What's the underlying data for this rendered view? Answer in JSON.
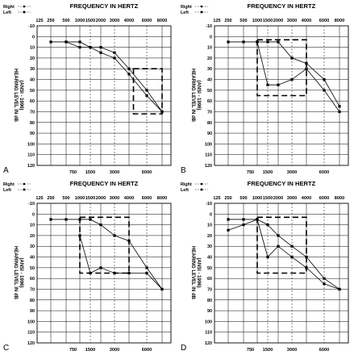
{
  "chart_data": [
    {
      "panel": "A",
      "type": "line",
      "title": "FREQUENCY IN HERTZ",
      "ylabel": "HEARING LEVEL IN dB",
      "ylabel2": "(ANSI - 1996)",
      "top_x_ticks": [
        "125",
        "250",
        "500",
        "1000",
        "1500",
        "2000",
        "3000",
        "4000",
        "6000",
        "8000"
      ],
      "bottom_x_ticks": [
        "750",
        "1500",
        "3000",
        "6000"
      ],
      "y_ticks": [
        "-10",
        "0",
        "10",
        "20",
        "30",
        "40",
        "50",
        "60",
        "70",
        "80",
        "90",
        "100",
        "110",
        "120"
      ],
      "ylim": [
        -10,
        120
      ],
      "y_inverted": true,
      "legend": [
        {
          "label": "Right",
          "marker": "circle"
        },
        {
          "label": "Left",
          "marker": "square"
        }
      ],
      "series": [
        {
          "x": [
            250,
            500,
            1000,
            1500,
            2000,
            3000,
            4000,
            6000,
            8000
          ],
          "values": [
            5,
            5,
            5,
            10,
            10,
            15,
            30,
            50,
            70
          ]
        },
        {
          "x": [
            500,
            1000,
            1500,
            2000,
            3000,
            4000,
            6000,
            8000
          ],
          "values": [
            5,
            10,
            10,
            15,
            20,
            35,
            55,
            70
          ]
        }
      ],
      "box": {
        "x": [
          4500,
          8000
        ],
        "y": [
          30,
          72
        ]
      }
    },
    {
      "panel": "B",
      "type": "line",
      "title": "FREQUENCY IN HERTZ",
      "ylabel": "HEARING LEVEL IN dB",
      "ylabel2": "(ANSI - 1996)",
      "top_x_ticks": [
        "125",
        "250",
        "500",
        "1000",
        "1500",
        "2000",
        "3000",
        "4000",
        "6000",
        "8000"
      ],
      "bottom_x_ticks": [
        "750",
        "1500",
        "3000",
        "6000"
      ],
      "y_ticks": [
        "-10",
        "0",
        "10",
        "20",
        "30",
        "40",
        "50",
        "60",
        "70",
        "80",
        "90",
        "100",
        "110",
        "120"
      ],
      "ylim": [
        -10,
        120
      ],
      "y_inverted": true,
      "legend": [
        {
          "label": "Right",
          "marker": "circle"
        },
        {
          "label": "Left",
          "marker": "square"
        }
      ],
      "series": [
        {
          "x": [
            250,
            500,
            1000,
            1500,
            2000,
            3000,
            4000,
            6000,
            8000
          ],
          "values": [
            5,
            5,
            5,
            5,
            5,
            20,
            25,
            40,
            65
          ]
        },
        {
          "x": [
            1000,
            1500,
            2000,
            3000,
            4000,
            6000,
            8000
          ],
          "values": [
            5,
            45,
            45,
            40,
            30,
            50,
            70
          ]
        }
      ],
      "box": {
        "x": [
          1000,
          4000
        ],
        "y": [
          3,
          55
        ]
      }
    },
    {
      "panel": "C",
      "type": "line",
      "title": "FREQUENCY IN HERTZ",
      "ylabel": "HEARING LEVEL IN dB",
      "ylabel2": "(ANSI - 1996)",
      "top_x_ticks": [
        "125",
        "250",
        "500",
        "1000",
        "1500",
        "2000",
        "3000",
        "4000",
        "6000",
        "8000"
      ],
      "bottom_x_ticks": [
        "750",
        "1500",
        "3000",
        "6000"
      ],
      "y_ticks": [
        "-10",
        "0",
        "10",
        "20",
        "30",
        "40",
        "50",
        "60",
        "70",
        "80",
        "90",
        "100",
        "110",
        "120"
      ],
      "ylim": [
        -10,
        120
      ],
      "y_inverted": true,
      "legend": [
        {
          "label": "Right",
          "marker": "circle"
        },
        {
          "label": "Left",
          "marker": "square"
        }
      ],
      "series": [
        {
          "x": [
            250,
            500,
            1000,
            1500,
            2000,
            3000,
            4000,
            6000,
            8000
          ],
          "values": [
            5,
            5,
            5,
            5,
            10,
            20,
            25,
            50,
            70
          ]
        },
        {
          "x": [
            1000,
            1500,
            2000,
            3000,
            4000,
            6000,
            8000
          ],
          "values": [
            20,
            55,
            50,
            55,
            55,
            55,
            70
          ]
        }
      ],
      "box": {
        "x": [
          1000,
          4000
        ],
        "y": [
          3,
          55
        ]
      }
    },
    {
      "panel": "D",
      "type": "line",
      "title": "FREQUENCY IN HERTZ",
      "ylabel": "HEARING LEVEL IN dB",
      "ylabel2": "(ANSI - 1996)",
      "top_x_ticks": [
        "125",
        "250",
        "500",
        "1000",
        "1500",
        "2000",
        "3000",
        "4000",
        "6000",
        "8000"
      ],
      "bottom_x_ticks": [
        "750",
        "1500",
        "3000",
        "6000"
      ],
      "y_ticks": [
        "-10",
        "0",
        "10",
        "20",
        "30",
        "40",
        "50",
        "60",
        "70",
        "80",
        "90",
        "100",
        "110",
        "120"
      ],
      "ylim": [
        -10,
        120
      ],
      "y_inverted": true,
      "legend": [
        {
          "label": "Right",
          "marker": "circle"
        },
        {
          "label": "Left",
          "marker": "square"
        }
      ],
      "series": [
        {
          "x": [
            250,
            500,
            1000,
            1500,
            2000,
            3000,
            4000,
            6000,
            8000
          ],
          "values": [
            5,
            5,
            5,
            10,
            20,
            30,
            40,
            60,
            70
          ]
        },
        {
          "x": [
            250,
            500,
            1000,
            1500,
            2000,
            3000,
            4000,
            6000,
            8000
          ],
          "values": [
            15,
            10,
            5,
            40,
            30,
            40,
            50,
            65,
            70
          ]
        }
      ],
      "box": {
        "x": [
          1000,
          4000
        ],
        "y": [
          3,
          55
        ]
      }
    }
  ]
}
